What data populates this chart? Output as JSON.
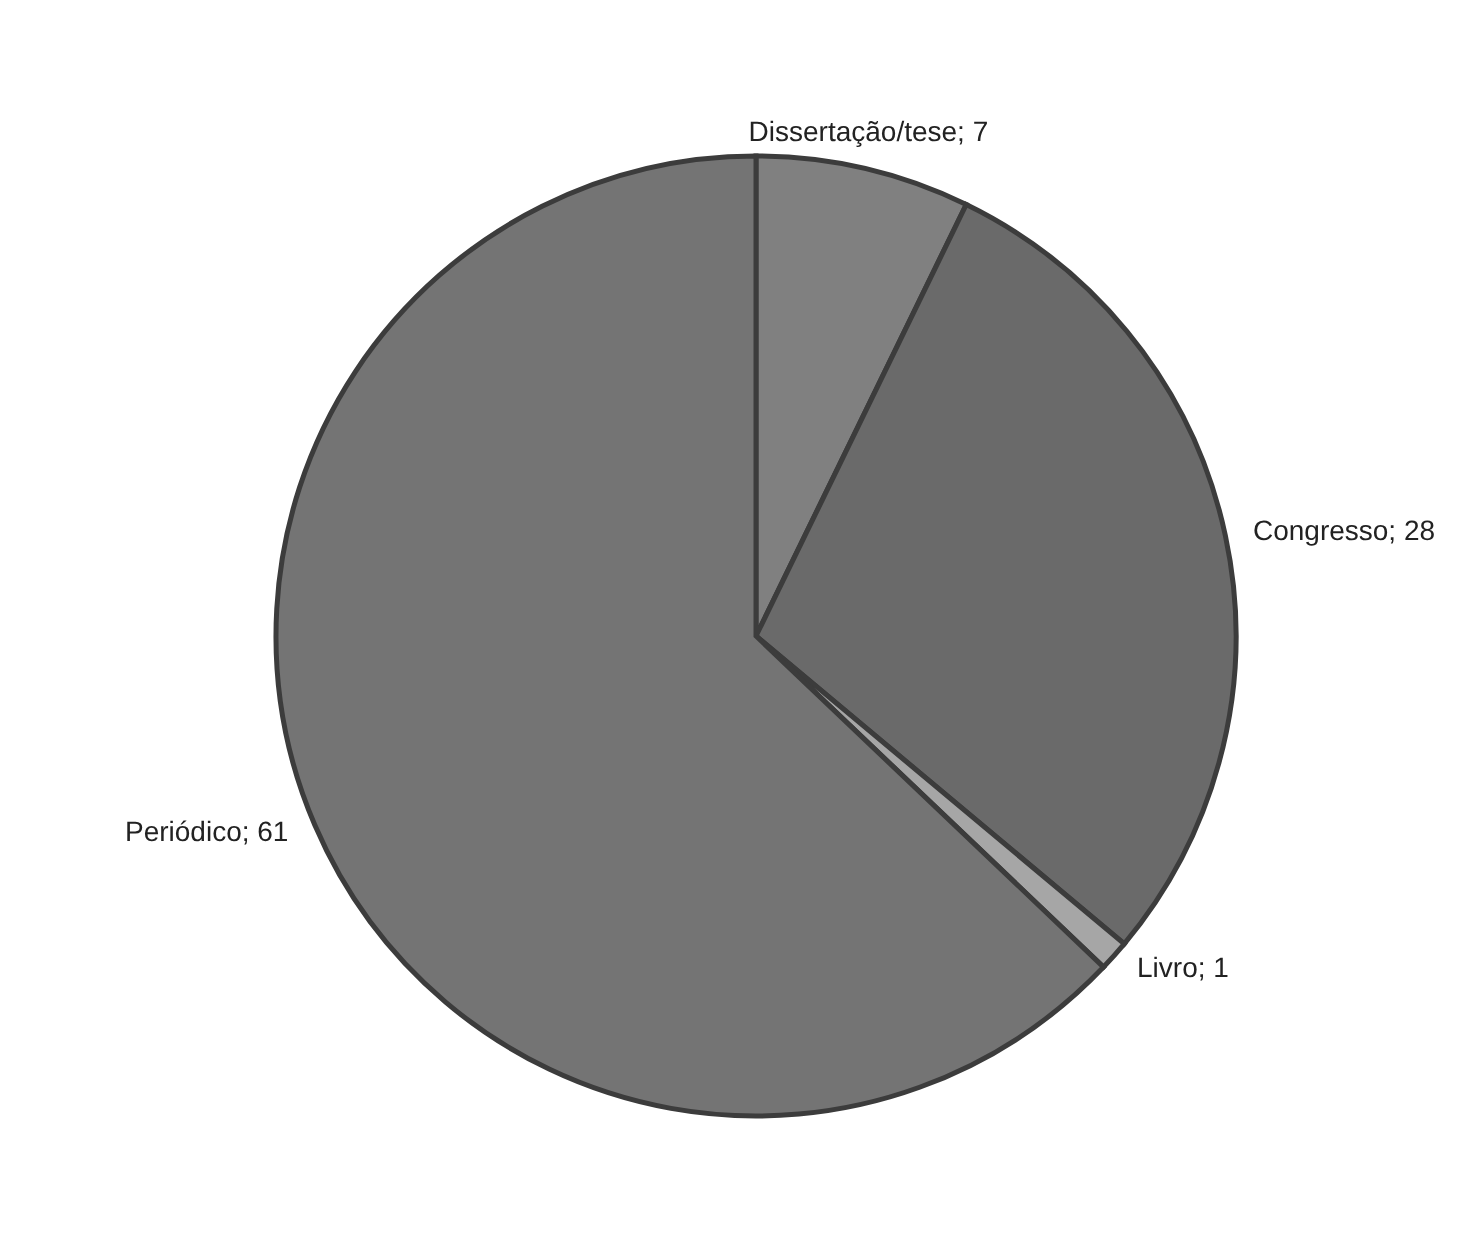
{
  "chart_data": {
    "type": "pie",
    "categories": [
      "Dissertação/tese",
      "Congresso",
      "Livro",
      "Periódico"
    ],
    "values": [
      7,
      28,
      1,
      61
    ],
    "colors": [
      "#808080",
      "#6a6a6a",
      "#a6a6a6",
      "#747474"
    ],
    "value_labels": [
      "; 7",
      "; 28",
      "; 1",
      "; 61"
    ]
  }
}
